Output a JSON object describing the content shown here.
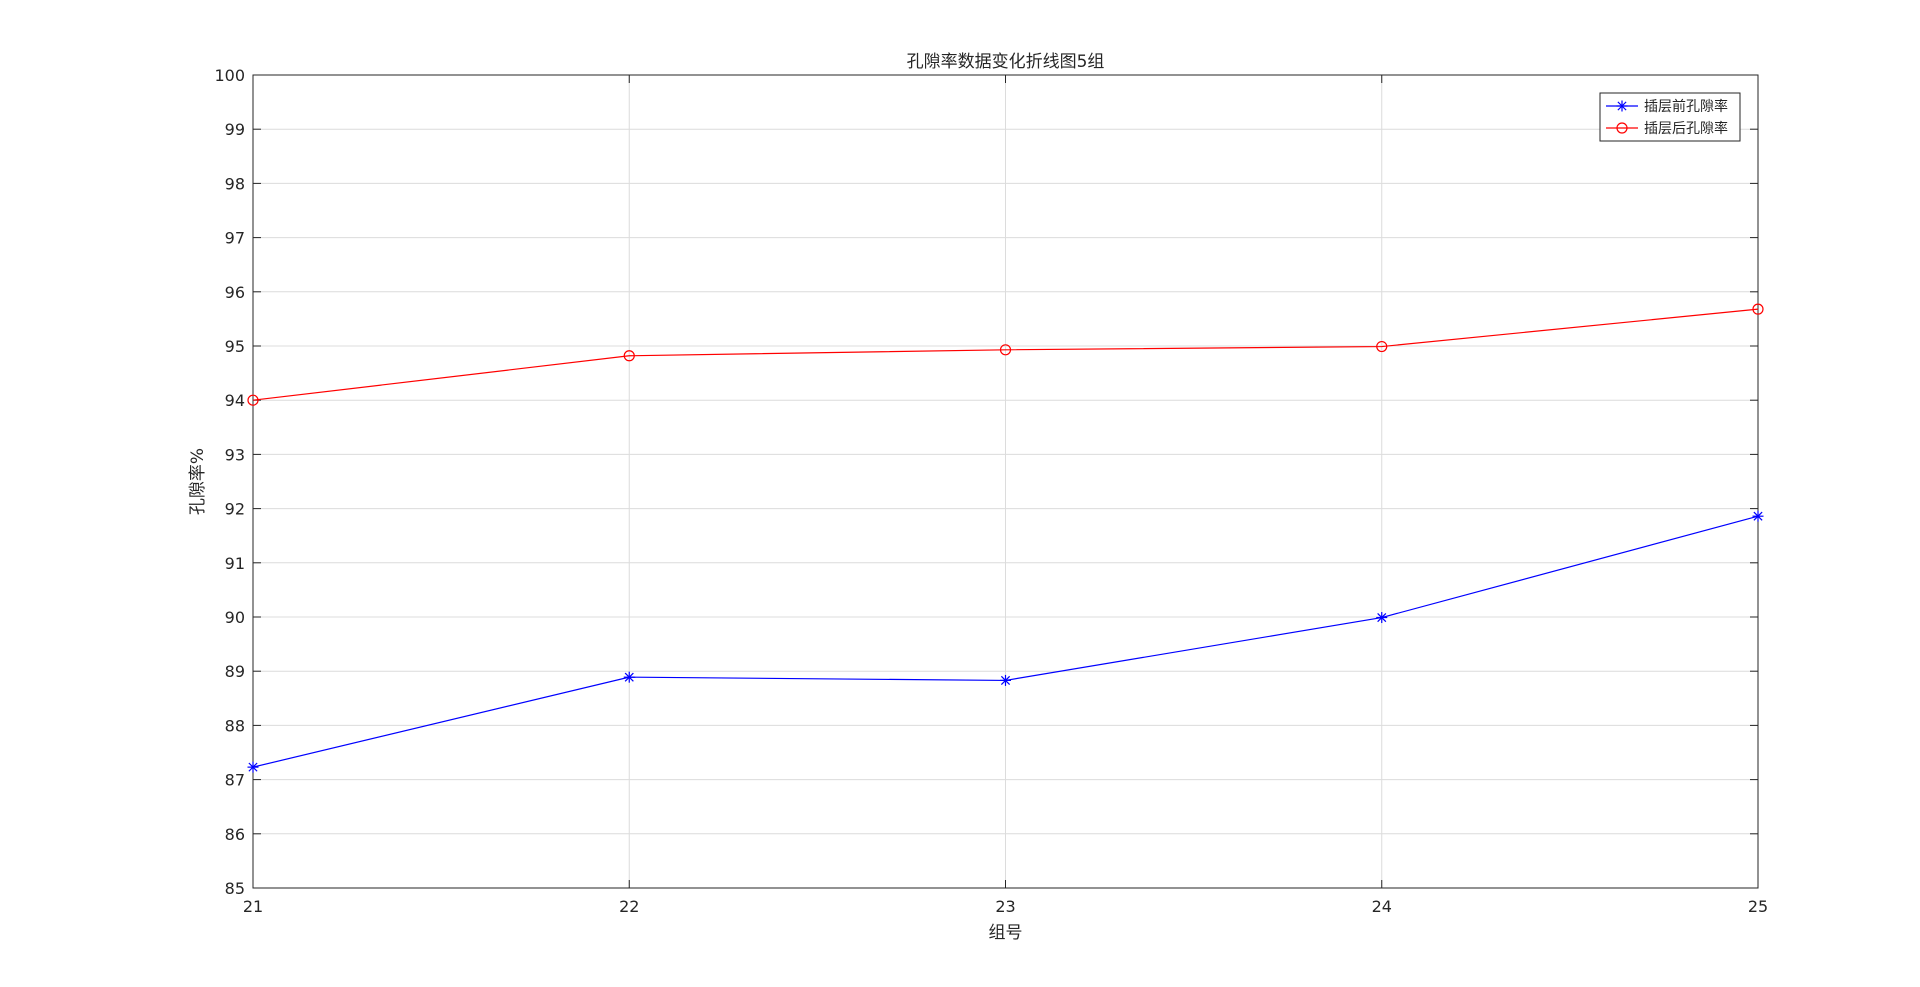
{
  "chart_data": {
    "type": "line",
    "title": "孔隙率数据变化折线图5组",
    "xlabel": "组号",
    "ylabel": "孔隙率%",
    "x": [
      21,
      22,
      23,
      24,
      25
    ],
    "xlim": [
      21,
      25
    ],
    "ylim": [
      85,
      100
    ],
    "xticks": [
      "21",
      "22",
      "23",
      "24",
      "25"
    ],
    "yticks": [
      "85",
      "86",
      "87",
      "88",
      "89",
      "90",
      "91",
      "92",
      "93",
      "94",
      "95",
      "96",
      "97",
      "98",
      "99",
      "100"
    ],
    "grid": true,
    "legend_position": "top-right",
    "series": [
      {
        "name": "插层前孔隙率",
        "values": [
          87.23,
          88.89,
          88.83,
          89.99,
          91.86
        ],
        "color": "#0000ff",
        "marker": "asterisk"
      },
      {
        "name": "插层后孔隙率",
        "values": [
          94.0,
          94.82,
          94.93,
          94.99,
          95.68
        ],
        "color": "#ff0000",
        "marker": "circle"
      }
    ]
  }
}
